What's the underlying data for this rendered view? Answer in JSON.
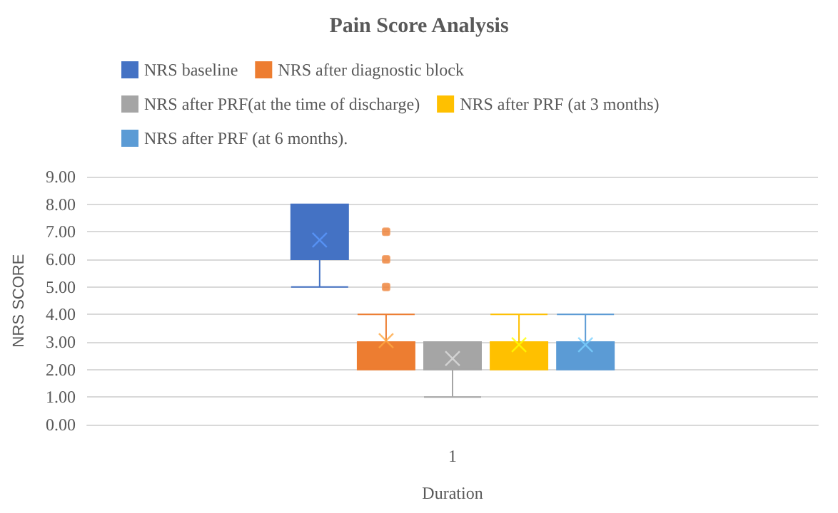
{
  "chart_data": {
    "type": "box",
    "title": "Pain Score Analysis",
    "xlabel": "Duration",
    "ylabel": "NRS SCORE",
    "categories": [
      "1"
    ],
    "ylim": [
      0,
      9
    ],
    "yticks": [
      {
        "value": 0,
        "label": "0.00"
      },
      {
        "value": 1,
        "label": "1.00"
      },
      {
        "value": 2,
        "label": "2.00"
      },
      {
        "value": 3,
        "label": "3.00"
      },
      {
        "value": 4,
        "label": "4.00"
      },
      {
        "value": 5,
        "label": "5.00"
      },
      {
        "value": 6,
        "label": "6.00"
      },
      {
        "value": 7,
        "label": "7.00"
      },
      {
        "value": 8,
        "label": "8.00"
      },
      {
        "value": 9,
        "label": "9.00"
      }
    ],
    "grid": "y",
    "legend": "top",
    "series": [
      {
        "name": "NRS baseline",
        "color": "#4472c4",
        "boxes": [
          {
            "low": 5,
            "q1": 6,
            "median": 6,
            "q3": 8,
            "high": 8,
            "mean": 6.7
          }
        ]
      },
      {
        "name": "NRS after diagnostic block",
        "color": "#ed7d31",
        "boxes": [
          {
            "low": 2,
            "q1": 2,
            "median": 3,
            "q3": 3,
            "high": 4,
            "mean": 3.05,
            "outliers": [
              5,
              6,
              7
            ]
          }
        ]
      },
      {
        "name": "NRS after PRF(at the time of discharge)",
        "color": "#a5a5a5",
        "boxes": [
          {
            "low": 1,
            "q1": 2,
            "median": 2,
            "q3": 3,
            "high": 3,
            "mean": 2.4
          }
        ]
      },
      {
        "name": "NRS after PRF (at 3 months)",
        "color": "#ffc000",
        "boxes": [
          {
            "low": 2,
            "q1": 2,
            "median": 3,
            "q3": 3,
            "high": 4,
            "mean": 2.9
          }
        ]
      },
      {
        "name": "NRS after PRF (at 6 months).",
        "color": "#5b9bd5",
        "boxes": [
          {
            "low": 2,
            "q1": 2,
            "median": 3,
            "q3": 3,
            "high": 4,
            "mean": 2.9
          }
        ]
      }
    ]
  }
}
